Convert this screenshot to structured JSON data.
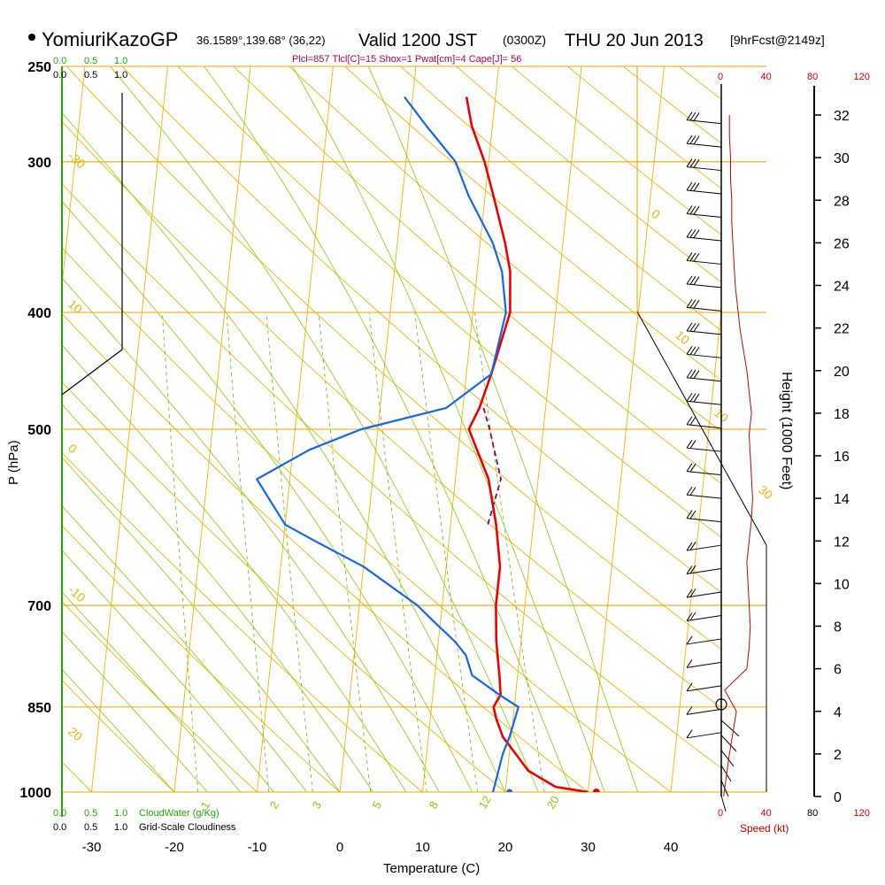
{
  "header": {
    "station": "YomiuriKazoGP",
    "coords": "36.1589°,139.68° (36,22)",
    "valid": "Valid 1200 JST",
    "zulu": "(0300Z)",
    "date": "THU 20 Jun 2013",
    "forecast": "[9hrFcst@2149z]",
    "indices": "Plcl=857 Tlcl[C]=15 Shox=1 Pwat[cm]=4 Cape[J]= 56"
  },
  "colors": {
    "isobar": "#f0a800",
    "dry_adiabat": "#f0b400",
    "moist_adiabat": "#88cc00",
    "mixing_ratio": "#66bb00",
    "temperature": "#ee0000",
    "dewpoint": "#1166ee",
    "parcel": "#880066",
    "speed": "#cc0000",
    "cloud_water": "#22aa00",
    "header_indices": "#aa0055"
  },
  "chart_data": {
    "type": "line",
    "title": "YomiuriKazoGP Valid 1200 JST (0300Z) THU 20 Jun 2013",
    "xlabel": "Temperature (C)",
    "ylabel": "P (hPa)",
    "y2label": "Height (1000 Feet)",
    "x_ticks": [
      -30,
      -20,
      -10,
      0,
      10,
      20,
      30,
      40
    ],
    "p_ticks": [
      250,
      300,
      400,
      500,
      700,
      850,
      1000
    ],
    "height_ticks": [
      0,
      2,
      4,
      6,
      8,
      10,
      12,
      14,
      16,
      18,
      20,
      22,
      24,
      26,
      28,
      30,
      32
    ],
    "dry_adiabat_labels": [
      "30",
      "20",
      "10",
      "0",
      "-10",
      "-20",
      "-30",
      "10",
      "0",
      "-10",
      "20",
      "30"
    ],
    "mixing_ratio_labels": [
      "1",
      "2",
      "3",
      "5",
      "8",
      "12",
      "20"
    ],
    "speed_ticks": [
      "0",
      "40",
      "80",
      "120"
    ],
    "speed_label": "Speed (kt)",
    "cloud_scale": {
      "ticks": [
        "0.0",
        "0.5",
        "1.0"
      ],
      "water_label": "CloudWater (g/Kg)",
      "cover_label": "Grid-Scale Cloudiness"
    },
    "series": [
      {
        "name": "Temperature",
        "points": [
          [
            1000,
            30
          ],
          [
            990,
            26
          ],
          [
            960,
            22.5
          ],
          [
            925,
            20.5
          ],
          [
            900,
            19
          ],
          [
            870,
            18
          ],
          [
            850,
            17.5
          ],
          [
            830,
            18.2
          ],
          [
            800,
            17.8
          ],
          [
            750,
            17
          ],
          [
            700,
            16.5
          ],
          [
            650,
            16.5
          ],
          [
            600,
            15.5
          ],
          [
            550,
            14
          ],
          [
            500,
            11
          ],
          [
            480,
            12
          ],
          [
            450,
            13
          ],
          [
            400,
            14.5
          ],
          [
            370,
            14
          ],
          [
            350,
            13
          ],
          [
            320,
            11
          ],
          [
            300,
            9.5
          ],
          [
            280,
            7.5
          ],
          [
            265,
            6.5
          ]
        ]
      },
      {
        "name": "Dewpoint",
        "points": [
          [
            1000,
            18.5
          ],
          [
            970,
            18.8
          ],
          [
            930,
            19.2
          ],
          [
            900,
            19.8
          ],
          [
            850,
            20.5
          ],
          [
            830,
            18
          ],
          [
            800,
            14.5
          ],
          [
            770,
            13.5
          ],
          [
            750,
            12
          ],
          [
            720,
            9
          ],
          [
            700,
            7
          ],
          [
            650,
            0
          ],
          [
            620,
            -6
          ],
          [
            600,
            -10
          ],
          [
            550,
            -14
          ],
          [
            520,
            -8
          ],
          [
            500,
            -2
          ],
          [
            480,
            8
          ],
          [
            450,
            13
          ],
          [
            400,
            14
          ],
          [
            370,
            13
          ],
          [
            350,
            11.5
          ],
          [
            320,
            8
          ],
          [
            300,
            6
          ],
          [
            280,
            2
          ],
          [
            265,
            -1
          ]
        ]
      },
      {
        "name": "Parcel",
        "points": [
          [
            480,
            12.5
          ],
          [
            500,
            13.5
          ],
          [
            550,
            15.5
          ],
          [
            600,
            14.5
          ]
        ]
      }
    ],
    "wind_profile_kt": [
      [
        0,
        2
      ],
      [
        2,
        7
      ],
      [
        4,
        13
      ],
      [
        5,
        3
      ],
      [
        6,
        22
      ],
      [
        7,
        24
      ],
      [
        8,
        25
      ],
      [
        9,
        24
      ],
      [
        10,
        23
      ],
      [
        11,
        22
      ],
      [
        12,
        24
      ],
      [
        13,
        26
      ],
      [
        14,
        27
      ],
      [
        15,
        26
      ],
      [
        16,
        25
      ],
      [
        17,
        24
      ],
      [
        18,
        26
      ],
      [
        19,
        24
      ],
      [
        20,
        22
      ],
      [
        21,
        19
      ],
      [
        22,
        16
      ],
      [
        23,
        14
      ],
      [
        24,
        12
      ],
      [
        25,
        11
      ],
      [
        26,
        10
      ],
      [
        27,
        9
      ],
      [
        28,
        9
      ],
      [
        29,
        8
      ],
      [
        30,
        8
      ],
      [
        31,
        7
      ],
      [
        32,
        7
      ]
    ],
    "surface": {
      "temperature": 31,
      "dewpoint": 20.5
    }
  }
}
